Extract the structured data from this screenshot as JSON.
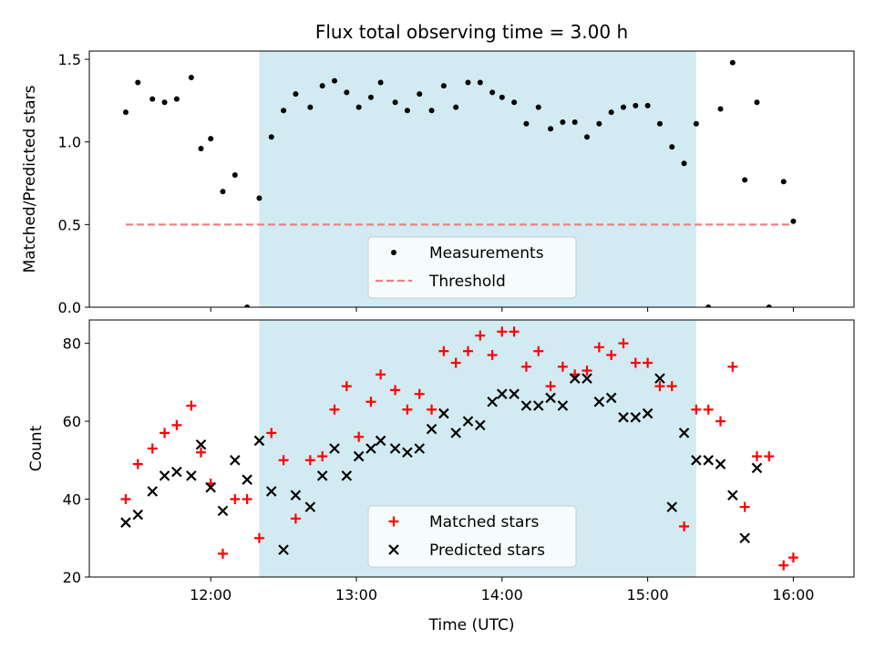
{
  "chart_data": [
    {
      "type": "scatter",
      "title": "Flux total observing time = 3.00 h",
      "xlabel": "",
      "ylabel": "Matched/Predicted stars",
      "ylim": [
        0,
        1.55
      ],
      "yticks": [
        "0.0",
        "0.5",
        "1.0",
        "1.5"
      ],
      "highlight_span": {
        "start": "12:20",
        "end": "15:20",
        "color": "#add8e6"
      },
      "legend_position": "lower-center",
      "series": [
        {
          "name": "Measurements",
          "marker": "dot",
          "color": "#000000",
          "x": [
            "11:25",
            "11:30",
            "11:36",
            "11:41",
            "11:46",
            "11:52",
            "11:56",
            "12:00",
            "12:05",
            "12:10",
            "12:15",
            "12:20",
            "12:25",
            "12:30",
            "12:35",
            "12:41",
            "12:46",
            "12:51",
            "12:56",
            "13:01",
            "13:06",
            "13:10",
            "13:16",
            "13:21",
            "13:26",
            "13:31",
            "13:36",
            "13:41",
            "13:46",
            "13:51",
            "13:56",
            "14:00",
            "14:05",
            "14:10",
            "14:15",
            "14:20",
            "14:25",
            "14:30",
            "14:35",
            "14:40",
            "14:45",
            "14:50",
            "14:55",
            "15:00",
            "15:05",
            "15:10",
            "15:15",
            "15:20",
            "15:25",
            "15:30",
            "15:35",
            "15:40",
            "15:45",
            "15:50",
            "15:56",
            "16:00"
          ],
          "y": [
            1.18,
            1.36,
            1.26,
            1.24,
            1.26,
            1.39,
            0.96,
            1.02,
            0.7,
            0.8,
            0.0,
            0.66,
            1.03,
            1.19,
            1.29,
            1.21,
            1.34,
            1.37,
            1.3,
            1.21,
            1.27,
            1.36,
            1.24,
            1.19,
            1.29,
            1.19,
            1.34,
            1.21,
            1.36,
            1.36,
            1.3,
            1.27,
            1.24,
            1.11,
            1.21,
            1.08,
            1.12,
            1.12,
            1.03,
            1.11,
            1.18,
            1.21,
            1.22,
            1.22,
            1.11,
            0.97,
            0.87,
            1.11,
            0.0,
            1.2,
            1.48,
            0.77,
            1.24,
            0.0,
            0.76,
            0.52
          ]
        },
        {
          "name": "Threshold",
          "marker": "dashed-line",
          "color": "#f08080",
          "x": [
            "11:25",
            "16:00"
          ],
          "y": [
            0.5,
            0.5
          ]
        }
      ]
    },
    {
      "type": "scatter",
      "title": "",
      "xlabel": "Time (UTC)",
      "ylabel": "Count",
      "ylim": [
        20,
        86
      ],
      "yticks": [
        "20",
        "40",
        "60",
        "80"
      ],
      "xticks": [
        "12:00",
        "13:00",
        "14:00",
        "15:00",
        "16:00"
      ],
      "highlight_span": {
        "start": "12:20",
        "end": "15:20",
        "color": "#add8e6"
      },
      "legend_position": "lower-center",
      "series": [
        {
          "name": "Matched stars",
          "marker": "plus",
          "color": "#ff0000",
          "x": [
            "11:25",
            "11:30",
            "11:36",
            "11:41",
            "11:46",
            "11:52",
            "11:56",
            "12:00",
            "12:05",
            "12:10",
            "12:15",
            "12:20",
            "12:25",
            "12:30",
            "12:35",
            "12:41",
            "12:46",
            "12:51",
            "12:56",
            "13:01",
            "13:06",
            "13:10",
            "13:16",
            "13:21",
            "13:26",
            "13:31",
            "13:36",
            "13:41",
            "13:46",
            "13:51",
            "13:56",
            "14:00",
            "14:05",
            "14:10",
            "14:15",
            "14:20",
            "14:25",
            "14:30",
            "14:35",
            "14:40",
            "14:45",
            "14:50",
            "14:55",
            "15:00",
            "15:05",
            "15:10",
            "15:15",
            "15:20",
            "15:25",
            "15:30",
            "15:35",
            "15:40",
            "15:45",
            "15:50",
            "15:56",
            "16:00"
          ],
          "y": [
            40,
            49,
            53,
            57,
            59,
            64,
            52,
            44,
            26,
            40,
            40,
            30,
            57,
            50,
            35,
            50,
            51,
            63,
            69,
            56,
            65,
            72,
            68,
            63,
            67,
            63,
            78,
            75,
            78,
            82,
            77,
            83,
            83,
            74,
            78,
            69,
            74,
            72,
            73,
            79,
            77,
            80,
            75,
            75,
            69,
            69,
            33,
            63,
            63,
            60,
            74,
            38,
            51,
            51,
            23,
            25
          ]
        },
        {
          "name": "Predicted stars",
          "marker": "x",
          "color": "#000000",
          "x": [
            "11:25",
            "11:30",
            "11:36",
            "11:41",
            "11:46",
            "11:52",
            "11:56",
            "12:00",
            "12:05",
            "12:10",
            "12:15",
            "12:20",
            "12:25",
            "12:30",
            "12:35",
            "12:41",
            "12:46",
            "12:51",
            "12:56",
            "13:01",
            "13:06",
            "13:10",
            "13:16",
            "13:21",
            "13:26",
            "13:31",
            "13:36",
            "13:41",
            "13:46",
            "13:51",
            "13:56",
            "14:00",
            "14:05",
            "14:10",
            "14:15",
            "14:20",
            "14:25",
            "14:30",
            "14:35",
            "14:40",
            "14:45",
            "14:50",
            "14:55",
            "15:00",
            "15:05",
            "15:10",
            "15:15",
            "15:20",
            "15:25",
            "15:30",
            "15:35",
            "15:40",
            "15:45",
            "15:50",
            "15:56",
            "16:00"
          ],
          "y": [
            34,
            36,
            42,
            46,
            47,
            46,
            54,
            43,
            37,
            50,
            45,
            55,
            42,
            27,
            41,
            38,
            46,
            53,
            46,
            51,
            53,
            55,
            53,
            52,
            53,
            58,
            62,
            57,
            60,
            59,
            65,
            67,
            67,
            64,
            64,
            66,
            64,
            71,
            71,
            65,
            66,
            61,
            61,
            62,
            71,
            38,
            57,
            50,
            50,
            49,
            41,
            30,
            48,
            null,
            null,
            null
          ]
        }
      ]
    }
  ]
}
